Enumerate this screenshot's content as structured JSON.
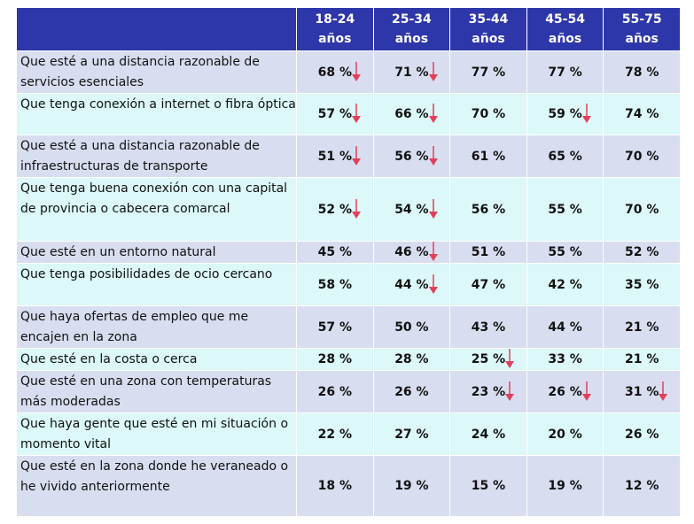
{
  "chart_data": {
    "type": "table",
    "columns": [
      "18-24\naños",
      "25-34\naños",
      "35-44\naños",
      "45-54\naños",
      "55-75\naños"
    ],
    "column_lines": [
      [
        "18-24",
        "años"
      ],
      [
        "25-34",
        "años"
      ],
      [
        "35-44",
        "años"
      ],
      [
        "45-54",
        "años"
      ],
      [
        "55-75",
        "años"
      ]
    ],
    "arrow_color": "#E0415A",
    "header_color": "#2E37A9",
    "rows": [
      {
        "label": "Que esté a una distancia razonable de servicios esenciales",
        "values": [
          "68 %",
          "71 %",
          "77 %",
          "77 %",
          "78 %"
        ],
        "down": [
          true,
          true,
          false,
          false,
          false
        ]
      },
      {
        "label": "Que tenga conexión a internet o fibra óptica",
        "values": [
          "57 %",
          "66 %",
          "70 %",
          "59 %",
          "74 %"
        ],
        "down": [
          true,
          true,
          false,
          true,
          false
        ]
      },
      {
        "label": "Que esté a una distancia razonable de infraestructuras de transporte",
        "values": [
          "51 %",
          "56 %",
          "61 %",
          "65 %",
          "70 %"
        ],
        "down": [
          true,
          true,
          false,
          false,
          false
        ]
      },
      {
        "label": "Que tenga buena conexión con una capital de provincia o cabecera comarcal",
        "values": [
          "52 %",
          "54 %",
          "56 %",
          "55 %",
          "70 %"
        ],
        "down": [
          true,
          true,
          false,
          false,
          false
        ]
      },
      {
        "label": "Que esté en un entorno natural",
        "values": [
          "45 %",
          "46 %",
          "51 %",
          "55 %",
          "52 %"
        ],
        "down": [
          false,
          true,
          false,
          false,
          false
        ]
      },
      {
        "label": "Que tenga posibilidades de ocio cercano",
        "values": [
          "58 %",
          "44 %",
          "47 %",
          "42 %",
          "35 %"
        ],
        "down": [
          false,
          true,
          false,
          false,
          false
        ]
      },
      {
        "label": "Que haya ofertas de empleo que me encajen en la zona",
        "values": [
          "57 %",
          "50 %",
          "43 %",
          "44 %",
          "21 %"
        ],
        "down": [
          false,
          false,
          false,
          false,
          false
        ]
      },
      {
        "label": "Que esté en la costa o cerca",
        "values": [
          "28 %",
          "28 %",
          "25 %",
          "33 %",
          "21 %"
        ],
        "down": [
          false,
          false,
          true,
          false,
          false
        ]
      },
      {
        "label": "Que esté en una zona con temperaturas más moderadas",
        "values": [
          "26 %",
          "26 %",
          "23 %",
          "26 %",
          "31 %"
        ],
        "down": [
          false,
          false,
          true,
          true,
          true
        ]
      },
      {
        "label": "Que haya gente que esté en mi situación o momento vital",
        "values": [
          "22 %",
          "27 %",
          "24 %",
          "20 %",
          "26 %"
        ],
        "down": [
          false,
          false,
          false,
          false,
          false
        ]
      },
      {
        "label": "Que esté en la zona donde he veraneado o he vivido anteriormente",
        "values": [
          "18 %",
          "19 %",
          "15 %",
          "19 %",
          "12 %"
        ],
        "down": [
          false,
          false,
          false,
          false,
          false
        ]
      }
    ]
  }
}
